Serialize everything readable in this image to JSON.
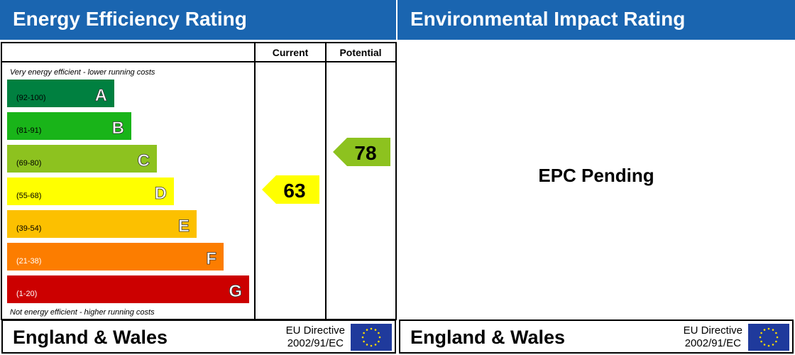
{
  "titles": {
    "energy": "Energy Efficiency Rating",
    "environmental": "Environmental Impact Rating"
  },
  "environmental": {
    "status": "EPC Pending"
  },
  "footer": {
    "region": "England & Wales",
    "directive_line1": "EU Directive",
    "directive_line2": "2002/91/EC"
  },
  "chart_data": {
    "type": "bar",
    "columns": [
      "Current",
      "Potential"
    ],
    "top_note": "Very energy efficient - lower running costs",
    "bottom_note": "Not energy efficient - higher running costs",
    "bands": [
      {
        "letter": "A",
        "range": "(92-100)",
        "color": "#008040"
      },
      {
        "letter": "B",
        "range": "(81-91)",
        "color": "#19b419"
      },
      {
        "letter": "C",
        "range": "(69-80)",
        "color": "#8dc21f"
      },
      {
        "letter": "D",
        "range": "(55-68)",
        "color": "#ffff00"
      },
      {
        "letter": "E",
        "range": "(39-54)",
        "color": "#fcc000"
      },
      {
        "letter": "F",
        "range": "(21-38)",
        "color": "#fc7d00"
      },
      {
        "letter": "G",
        "range": "(1-20)",
        "color": "#cc0000"
      }
    ],
    "current": {
      "value": 63,
      "band": "D",
      "color": "#ffff00"
    },
    "potential": {
      "value": 78,
      "band": "C",
      "color": "#8dc21f"
    }
  }
}
